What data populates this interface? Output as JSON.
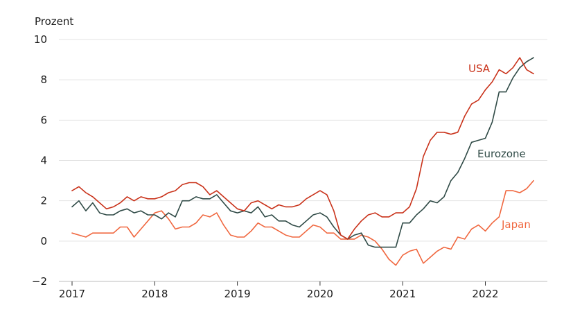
{
  "chart_data": {
    "type": "line",
    "title": "",
    "ylabel": "Prozent",
    "xlabel": "",
    "ylim": [
      -2,
      10
    ],
    "yticks": [
      -2,
      0,
      2,
      4,
      6,
      8,
      10
    ],
    "x_start": "2017-01",
    "x_end": "2022-08",
    "xticks": [
      "2017",
      "2018",
      "2019",
      "2020",
      "2021",
      "2022"
    ],
    "grid": true,
    "series": [
      {
        "name": "USA",
        "color": "#c9321a",
        "values": [
          2.5,
          2.7,
          2.4,
          2.2,
          1.9,
          1.6,
          1.7,
          1.9,
          2.2,
          2.0,
          2.2,
          2.1,
          2.1,
          2.2,
          2.4,
          2.5,
          2.8,
          2.9,
          2.9,
          2.7,
          2.3,
          2.5,
          2.2,
          1.9,
          1.6,
          1.5,
          1.9,
          2.0,
          1.8,
          1.6,
          1.8,
          1.7,
          1.7,
          1.8,
          2.1,
          2.3,
          2.5,
          2.3,
          1.5,
          0.3,
          0.1,
          0.6,
          1.0,
          1.3,
          1.4,
          1.2,
          1.2,
          1.4,
          1.4,
          1.7,
          2.6,
          4.2,
          5.0,
          5.4,
          5.4,
          5.3,
          5.4,
          6.2,
          6.8,
          7.0,
          7.5,
          7.9,
          8.5,
          8.3,
          8.6,
          9.1,
          8.5,
          8.3
        ]
      },
      {
        "name": "Eurozone",
        "color": "#2f4a46",
        "values": [
          1.7,
          2.0,
          1.5,
          1.9,
          1.4,
          1.3,
          1.3,
          1.5,
          1.6,
          1.4,
          1.5,
          1.3,
          1.3,
          1.1,
          1.4,
          1.2,
          2.0,
          2.0,
          2.2,
          2.1,
          2.1,
          2.3,
          1.9,
          1.5,
          1.4,
          1.5,
          1.4,
          1.7,
          1.2,
          1.3,
          1.0,
          1.0,
          0.8,
          0.7,
          1.0,
          1.3,
          1.4,
          1.2,
          0.7,
          0.3,
          0.1,
          0.3,
          0.4,
          -0.2,
          -0.3,
          -0.3,
          -0.3,
          -0.3,
          0.9,
          0.9,
          1.3,
          1.6,
          2.0,
          1.9,
          2.2,
          3.0,
          3.4,
          4.1,
          4.9,
          5.0,
          5.1,
          5.9,
          7.4,
          7.4,
          8.1,
          8.6,
          8.9,
          9.1
        ]
      },
      {
        "name": "Japan",
        "color": "#f0673f",
        "values": [
          0.4,
          0.3,
          0.2,
          0.4,
          0.4,
          0.4,
          0.4,
          0.7,
          0.7,
          0.2,
          0.6,
          1.0,
          1.4,
          1.5,
          1.1,
          0.6,
          0.7,
          0.7,
          0.9,
          1.3,
          1.2,
          1.4,
          0.8,
          0.3,
          0.2,
          0.2,
          0.5,
          0.9,
          0.7,
          0.7,
          0.5,
          0.3,
          0.2,
          0.2,
          0.5,
          0.8,
          0.7,
          0.4,
          0.4,
          0.1,
          0.1,
          0.1,
          0.3,
          0.2,
          0.0,
          -0.4,
          -0.9,
          -1.2,
          -0.7,
          -0.5,
          -0.4,
          -1.1,
          -0.8,
          -0.5,
          -0.3,
          -0.4,
          0.2,
          0.1,
          0.6,
          0.8,
          0.5,
          0.9,
          1.2,
          2.5,
          2.5,
          2.4,
          2.6,
          3.0
        ]
      }
    ]
  }
}
